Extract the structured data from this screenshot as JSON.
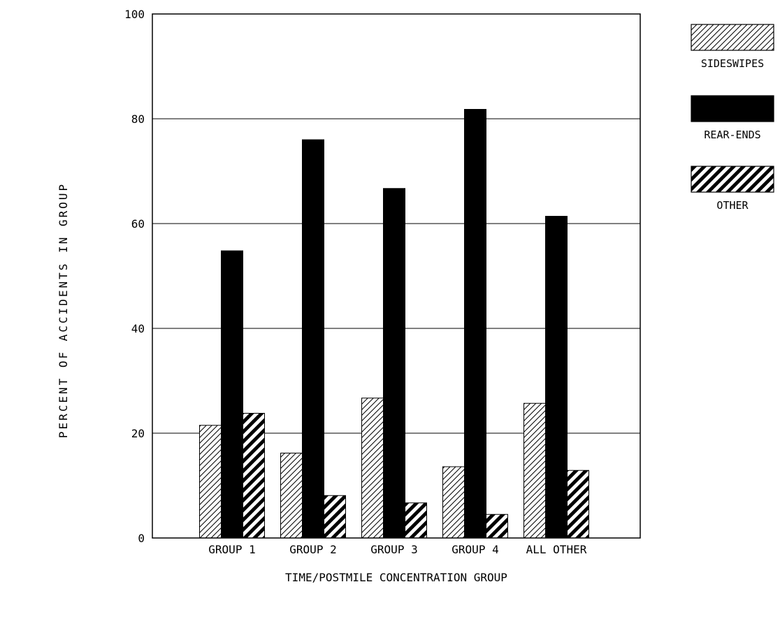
{
  "chart_data": {
    "type": "bar",
    "categories": [
      "GROUP 1",
      "GROUP 2",
      "GROUP 3",
      "GROUP 4",
      "ALL OTHER"
    ],
    "series": [
      {
        "name": "SIDESWIPES",
        "values": [
          21.5,
          16.2,
          26.7,
          13.6,
          25.7
        ],
        "pattern": "light-hatch"
      },
      {
        "name": "REAR-ENDS",
        "values": [
          54.8,
          76.0,
          66.7,
          81.8,
          61.4
        ],
        "pattern": "solid"
      },
      {
        "name": "OTHER",
        "values": [
          23.8,
          8.1,
          6.7,
          4.5,
          12.9
        ],
        "pattern": "heavy-hatch"
      }
    ],
    "xlabel": "TIME/POSTMILE CONCENTRATION GROUP",
    "ylabel": "PERCENT OF ACCIDENTS IN GROUP",
    "ylim": [
      0,
      100
    ],
    "yticks": [
      "0",
      "20",
      "40",
      "60",
      "80",
      "100"
    ],
    "grid": "horizontal",
    "legend_position": "top-right",
    "colors": {
      "ink": "#000000",
      "background": "#ffffff"
    }
  }
}
